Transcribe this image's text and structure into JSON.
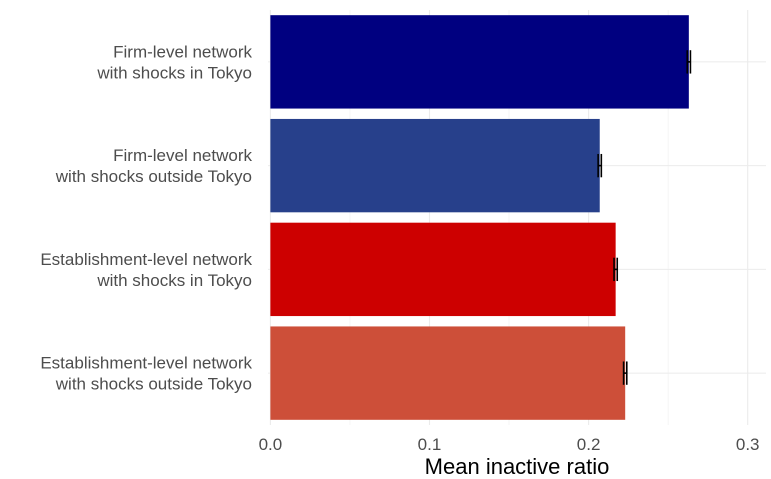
{
  "chart_data": {
    "type": "bar",
    "orientation": "horizontal",
    "categories": [
      [
        "Firm-level network",
        "with shocks in Tokyo"
      ],
      [
        "Firm-level network",
        "with shocks outside Tokyo"
      ],
      [
        "Establishment-level network",
        "with shocks in Tokyo"
      ],
      [
        "Establishment-level network",
        "with shocks outside Tokyo"
      ]
    ],
    "values": [
      0.263,
      0.207,
      0.217,
      0.223
    ],
    "error_low": [
      0.262,
      0.206,
      0.216,
      0.222
    ],
    "error_high": [
      0.264,
      0.208,
      0.218,
      0.224
    ],
    "colors": [
      "#000080",
      "#27408B",
      "#CD0000",
      "#CD4F39"
    ],
    "xlabel": "Mean inactive ratio",
    "xlim": [
      -0.0015,
      0.3115
    ],
    "xticks": [
      0.0,
      0.1,
      0.2,
      0.3
    ],
    "xtick_labels": [
      "0.0",
      "0.1",
      "0.2",
      "0.3"
    ],
    "grid": true,
    "legend": "none"
  }
}
